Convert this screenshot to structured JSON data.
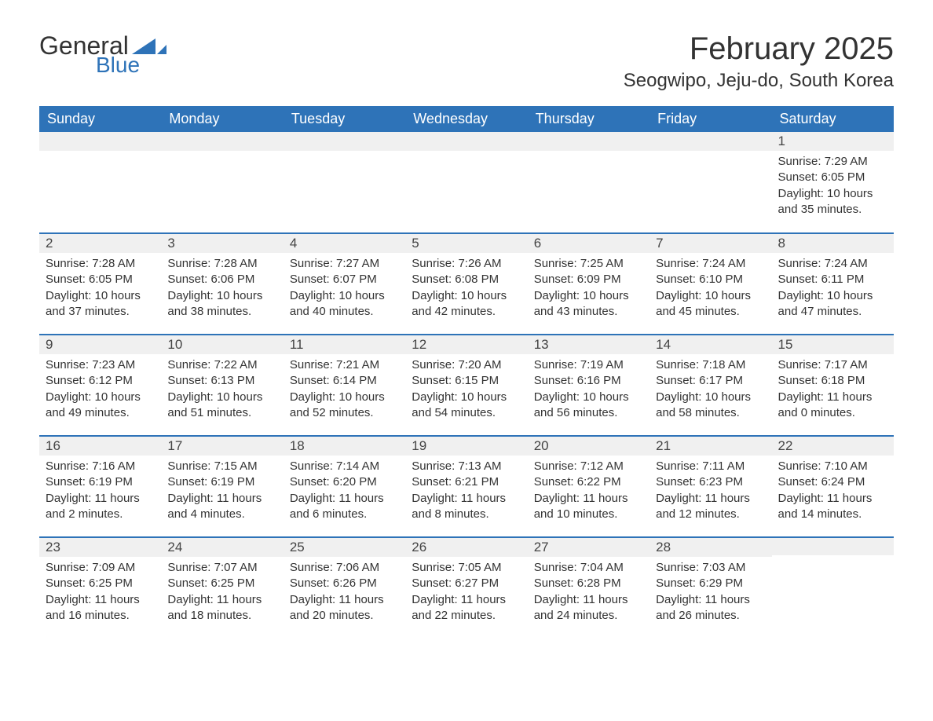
{
  "logo": {
    "text_general": "General",
    "text_blue": "Blue",
    "icon_color": "#2e73b8"
  },
  "title": {
    "month": "February 2025",
    "location": "Seogwipo, Jeju-do, South Korea"
  },
  "colors": {
    "header_bg": "#2e73b8",
    "header_text": "#ffffff",
    "day_header_bg": "#f0f0f0",
    "day_border": "#2e73b8",
    "text": "#333333",
    "background": "#ffffff"
  },
  "weekdays": [
    "Sunday",
    "Monday",
    "Tuesday",
    "Wednesday",
    "Thursday",
    "Friday",
    "Saturday"
  ],
  "weeks": [
    [
      null,
      null,
      null,
      null,
      null,
      null,
      {
        "day": "1",
        "sunrise": "7:29 AM",
        "sunset": "6:05 PM",
        "daylight": "10 hours and 35 minutes."
      }
    ],
    [
      {
        "day": "2",
        "sunrise": "7:28 AM",
        "sunset": "6:05 PM",
        "daylight": "10 hours and 37 minutes."
      },
      {
        "day": "3",
        "sunrise": "7:28 AM",
        "sunset": "6:06 PM",
        "daylight": "10 hours and 38 minutes."
      },
      {
        "day": "4",
        "sunrise": "7:27 AM",
        "sunset": "6:07 PM",
        "daylight": "10 hours and 40 minutes."
      },
      {
        "day": "5",
        "sunrise": "7:26 AM",
        "sunset": "6:08 PM",
        "daylight": "10 hours and 42 minutes."
      },
      {
        "day": "6",
        "sunrise": "7:25 AM",
        "sunset": "6:09 PM",
        "daylight": "10 hours and 43 minutes."
      },
      {
        "day": "7",
        "sunrise": "7:24 AM",
        "sunset": "6:10 PM",
        "daylight": "10 hours and 45 minutes."
      },
      {
        "day": "8",
        "sunrise": "7:24 AM",
        "sunset": "6:11 PM",
        "daylight": "10 hours and 47 minutes."
      }
    ],
    [
      {
        "day": "9",
        "sunrise": "7:23 AM",
        "sunset": "6:12 PM",
        "daylight": "10 hours and 49 minutes."
      },
      {
        "day": "10",
        "sunrise": "7:22 AM",
        "sunset": "6:13 PM",
        "daylight": "10 hours and 51 minutes."
      },
      {
        "day": "11",
        "sunrise": "7:21 AM",
        "sunset": "6:14 PM",
        "daylight": "10 hours and 52 minutes."
      },
      {
        "day": "12",
        "sunrise": "7:20 AM",
        "sunset": "6:15 PM",
        "daylight": "10 hours and 54 minutes."
      },
      {
        "day": "13",
        "sunrise": "7:19 AM",
        "sunset": "6:16 PM",
        "daylight": "10 hours and 56 minutes."
      },
      {
        "day": "14",
        "sunrise": "7:18 AM",
        "sunset": "6:17 PM",
        "daylight": "10 hours and 58 minutes."
      },
      {
        "day": "15",
        "sunrise": "7:17 AM",
        "sunset": "6:18 PM",
        "daylight": "11 hours and 0 minutes."
      }
    ],
    [
      {
        "day": "16",
        "sunrise": "7:16 AM",
        "sunset": "6:19 PM",
        "daylight": "11 hours and 2 minutes."
      },
      {
        "day": "17",
        "sunrise": "7:15 AM",
        "sunset": "6:19 PM",
        "daylight": "11 hours and 4 minutes."
      },
      {
        "day": "18",
        "sunrise": "7:14 AM",
        "sunset": "6:20 PM",
        "daylight": "11 hours and 6 minutes."
      },
      {
        "day": "19",
        "sunrise": "7:13 AM",
        "sunset": "6:21 PM",
        "daylight": "11 hours and 8 minutes."
      },
      {
        "day": "20",
        "sunrise": "7:12 AM",
        "sunset": "6:22 PM",
        "daylight": "11 hours and 10 minutes."
      },
      {
        "day": "21",
        "sunrise": "7:11 AM",
        "sunset": "6:23 PM",
        "daylight": "11 hours and 12 minutes."
      },
      {
        "day": "22",
        "sunrise": "7:10 AM",
        "sunset": "6:24 PM",
        "daylight": "11 hours and 14 minutes."
      }
    ],
    [
      {
        "day": "23",
        "sunrise": "7:09 AM",
        "sunset": "6:25 PM",
        "daylight": "11 hours and 16 minutes."
      },
      {
        "day": "24",
        "sunrise": "7:07 AM",
        "sunset": "6:25 PM",
        "daylight": "11 hours and 18 minutes."
      },
      {
        "day": "25",
        "sunrise": "7:06 AM",
        "sunset": "6:26 PM",
        "daylight": "11 hours and 20 minutes."
      },
      {
        "day": "26",
        "sunrise": "7:05 AM",
        "sunset": "6:27 PM",
        "daylight": "11 hours and 22 minutes."
      },
      {
        "day": "27",
        "sunrise": "7:04 AM",
        "sunset": "6:28 PM",
        "daylight": "11 hours and 24 minutes."
      },
      {
        "day": "28",
        "sunrise": "7:03 AM",
        "sunset": "6:29 PM",
        "daylight": "11 hours and 26 minutes."
      },
      null
    ]
  ],
  "labels": {
    "sunrise": "Sunrise: ",
    "sunset": "Sunset: ",
    "daylight": "Daylight: "
  }
}
